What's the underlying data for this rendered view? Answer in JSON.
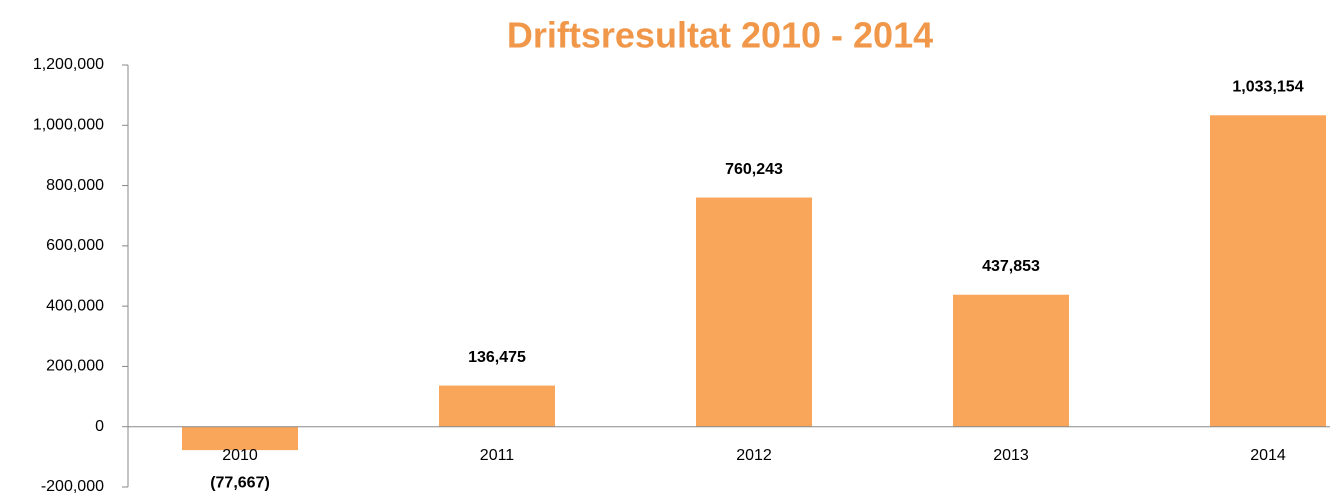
{
  "chart_data": {
    "type": "bar",
    "title": "Driftsresultat 2010 - 2014",
    "categories": [
      "2010",
      "2011",
      "2012",
      "2013",
      "2014"
    ],
    "values": [
      -77667,
      136475,
      760243,
      437853,
      1033154
    ],
    "value_labels": [
      "(77,667)",
      "136,475",
      "760,243",
      "437,853",
      "1,033,154"
    ],
    "color": "#f9a65a",
    "ylim": [
      -200000,
      1200000
    ],
    "yticks": [
      {
        "value": -200000,
        "label": "-200,000"
      },
      0,
      {
        "value": 200000,
        "label": "200,000"
      },
      {
        "value": 400000,
        "label": "400,000"
      },
      {
        "value": 600000,
        "label": "600,000"
      },
      {
        "value": 800000,
        "label": "800,000"
      },
      {
        "value": 1000000,
        "label": "1,000,000"
      },
      {
        "value": 1200000,
        "label": "1,200,000"
      }
    ],
    "grid": false
  }
}
